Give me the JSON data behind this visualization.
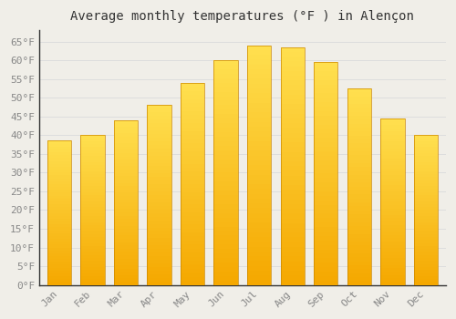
{
  "title": "Average monthly temperatures (°F ) in Alençon",
  "months": [
    "Jan",
    "Feb",
    "Mar",
    "Apr",
    "May",
    "Jun",
    "Jul",
    "Aug",
    "Sep",
    "Oct",
    "Nov",
    "Dec"
  ],
  "values": [
    38.5,
    40.0,
    44.0,
    48.0,
    54.0,
    60.0,
    64.0,
    63.5,
    59.5,
    52.5,
    44.5,
    40.0
  ],
  "bar_color_bottom": "#F5A800",
  "bar_color_top": "#FFE080",
  "bar_edge_color": "#CC8800",
  "background_color": "#F0EEE8",
  "grid_color": "#DDDDDD",
  "ylim": [
    0,
    68
  ],
  "yticks": [
    0,
    5,
    10,
    15,
    20,
    25,
    30,
    35,
    40,
    45,
    50,
    55,
    60,
    65
  ],
  "title_fontsize": 10,
  "tick_fontsize": 8,
  "tick_color": "#888888",
  "title_color": "#333333",
  "bar_width": 0.72
}
